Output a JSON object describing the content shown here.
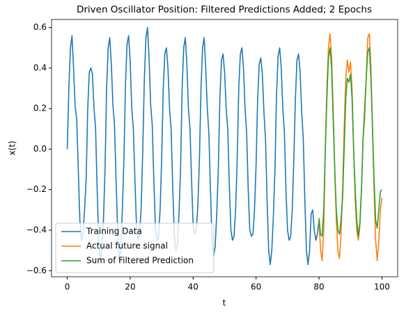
{
  "chart_data": {
    "type": "line",
    "title": "Driven Oscillator Position: Filtered Predictions Added; 2 Epochs",
    "x_label": "t",
    "y_label": "x(t)",
    "xlim": [
      -5,
      105
    ],
    "xticks": [
      0,
      20,
      40,
      60,
      80,
      100
    ],
    "ylim": [
      -0.63,
      0.64
    ],
    "yticks": [
      {
        "value": -0.6,
        "label": "−0.6"
      },
      {
        "value": -0.4,
        "label": "−0.4"
      },
      {
        "value": -0.2,
        "label": "−0.2"
      },
      {
        "value": 0,
        "label": "0.0"
      },
      0.2,
      0.4,
      0.6
    ],
    "legend": "lower left",
    "series": [
      {
        "name": "Training Data",
        "color": "#1f77b4",
        "x": [
          0,
          0.5,
          1,
          1.5,
          2,
          2.5,
          3,
          3.5,
          4,
          4.5,
          5,
          5.5,
          6,
          6.5,
          7,
          7.5,
          8,
          8.5,
          9,
          9.5,
          10,
          10.5,
          11,
          11.5,
          12,
          12.5,
          13,
          13.5,
          14,
          14.5,
          15,
          15.5,
          16,
          16.5,
          17,
          17.5,
          18,
          18.5,
          19,
          19.5,
          20,
          20.5,
          21,
          21.5,
          22,
          22.5,
          23,
          23.5,
          24,
          24.5,
          25,
          25.5,
          26,
          26.5,
          27,
          27.5,
          28,
          28.5,
          29,
          29.5,
          30,
          30.5,
          31,
          31.5,
          32,
          32.5,
          33,
          33.5,
          34,
          34.5,
          35,
          35.5,
          36,
          36.5,
          37,
          37.5,
          38,
          38.5,
          39,
          39.5,
          40,
          40.5,
          41,
          41.5,
          42,
          42.5,
          43,
          43.5,
          44,
          44.5,
          45,
          45.5,
          46,
          46.5,
          47,
          47.5,
          48,
          48.5,
          49,
          49.5,
          50,
          50.5,
          51,
          51.5,
          52,
          52.5,
          53,
          53.5,
          54,
          54.5,
          55,
          55.5,
          56,
          56.5,
          57,
          57.5,
          58,
          58.5,
          59,
          59.5,
          60,
          60.5,
          61,
          61.5,
          62,
          62.5,
          63,
          63.5,
          64,
          64.5,
          65,
          65.5,
          66,
          66.5,
          67,
          67.5,
          68,
          68.5,
          69,
          69.5,
          70,
          70.5,
          71,
          71.5,
          72,
          72.5,
          73,
          73.5,
          74,
          74.5,
          75,
          75.5,
          76,
          76.5,
          77,
          77.5,
          78,
          78.5,
          79,
          79.5,
          80
        ],
        "values": [
          0.0,
          0.3,
          0.5,
          0.56,
          0.4,
          0.21,
          0.15,
          -0.1,
          -0.35,
          -0.45,
          -0.42,
          -0.3,
          -0.15,
          0.2,
          0.38,
          0.4,
          0.37,
          0.2,
          0.1,
          -0.2,
          -0.45,
          -0.55,
          -0.5,
          -0.35,
          -0.1,
          0.3,
          0.5,
          0.55,
          0.42,
          0.22,
          0.12,
          -0.15,
          -0.4,
          -0.55,
          -0.5,
          -0.3,
          -0.05,
          0.32,
          0.52,
          0.56,
          0.43,
          0.2,
          0.1,
          -0.15,
          -0.38,
          -0.45,
          -0.42,
          -0.28,
          0.0,
          0.35,
          0.55,
          0.6,
          0.45,
          0.22,
          0.12,
          -0.15,
          -0.38,
          -0.45,
          -0.44,
          -0.3,
          -0.05,
          0.3,
          0.47,
          0.5,
          0.4,
          0.2,
          0.1,
          -0.18,
          -0.42,
          -0.5,
          -0.47,
          -0.32,
          -0.1,
          0.3,
          0.5,
          0.55,
          0.42,
          0.2,
          0.1,
          -0.15,
          -0.38,
          -0.42,
          -0.4,
          -0.28,
          -0.05,
          0.3,
          0.5,
          0.55,
          0.4,
          0.2,
          0.08,
          -0.2,
          -0.45,
          -0.53,
          -0.48,
          -0.32,
          -0.1,
          0.25,
          0.44,
          0.47,
          0.38,
          0.2,
          0.1,
          -0.18,
          -0.4,
          -0.45,
          -0.43,
          -0.3,
          -0.05,
          0.3,
          0.47,
          0.5,
          0.4,
          0.2,
          0.08,
          -0.2,
          -0.4,
          -0.43,
          -0.42,
          -0.3,
          -0.08,
          0.25,
          0.42,
          0.45,
          0.37,
          0.18,
          0.05,
          -0.25,
          -0.5,
          -0.57,
          -0.5,
          -0.33,
          -0.1,
          0.27,
          0.46,
          0.5,
          0.4,
          0.2,
          0.08,
          -0.2,
          -0.4,
          -0.45,
          -0.43,
          -0.3,
          -0.05,
          0.25,
          0.44,
          0.47,
          0.38,
          0.18,
          0.05,
          -0.25,
          -0.5,
          -0.57,
          -0.5,
          -0.32,
          -0.3,
          -0.4,
          -0.45,
          -0.42,
          -0.35
        ]
      },
      {
        "name": "Actual future signal",
        "color": "#ff7f0e",
        "x": [
          80,
          80.5,
          81,
          81.5,
          82,
          82.5,
          83,
          83.5,
          84,
          84.5,
          85,
          85.5,
          86,
          86.5,
          87,
          87.5,
          88,
          88.5,
          89,
          89.5,
          90,
          90.5,
          91,
          91.5,
          92,
          92.5,
          93,
          93.5,
          94,
          94.5,
          95,
          95.5,
          96,
          96.5,
          97,
          97.5,
          98,
          98.5,
          99,
          99.5,
          100
        ],
        "values": [
          -0.35,
          -0.5,
          -0.55,
          -0.4,
          0.0,
          0.3,
          0.5,
          0.57,
          0.45,
          0.2,
          -0.1,
          -0.35,
          -0.5,
          -0.54,
          -0.42,
          -0.2,
          0.1,
          0.35,
          0.44,
          0.38,
          0.43,
          0.3,
          0.0,
          -0.25,
          -0.4,
          -0.45,
          -0.38,
          -0.2,
          0.05,
          0.15,
          0.35,
          0.55,
          0.57,
          0.4,
          0.1,
          -0.2,
          -0.45,
          -0.55,
          -0.45,
          -0.3,
          -0.24
        ]
      },
      {
        "name": "Sum of Filtered Prediction",
        "color": "#2ca02c",
        "x": [
          80,
          80.5,
          81,
          81.5,
          82,
          82.5,
          83,
          83.5,
          84,
          84.5,
          85,
          85.5,
          86,
          86.5,
          87,
          87.5,
          88,
          88.5,
          89,
          89.5,
          90,
          90.5,
          91,
          91.5,
          92,
          92.5,
          93,
          93.5,
          94,
          94.5,
          95,
          95.5,
          96,
          96.5,
          97,
          97.5,
          98,
          98.5,
          99,
          99.5,
          100
        ],
        "values": [
          -0.34,
          -0.42,
          -0.43,
          -0.3,
          0.0,
          0.25,
          0.45,
          0.5,
          0.4,
          0.15,
          -0.1,
          -0.3,
          -0.4,
          -0.42,
          -0.35,
          -0.24,
          0.0,
          0.25,
          0.35,
          0.33,
          0.37,
          0.25,
          0.0,
          -0.2,
          -0.35,
          -0.43,
          -0.36,
          -0.2,
          0.05,
          0.2,
          0.35,
          0.48,
          0.5,
          0.35,
          0.1,
          -0.15,
          -0.35,
          -0.39,
          -0.3,
          -0.21,
          -0.2
        ]
      }
    ]
  }
}
